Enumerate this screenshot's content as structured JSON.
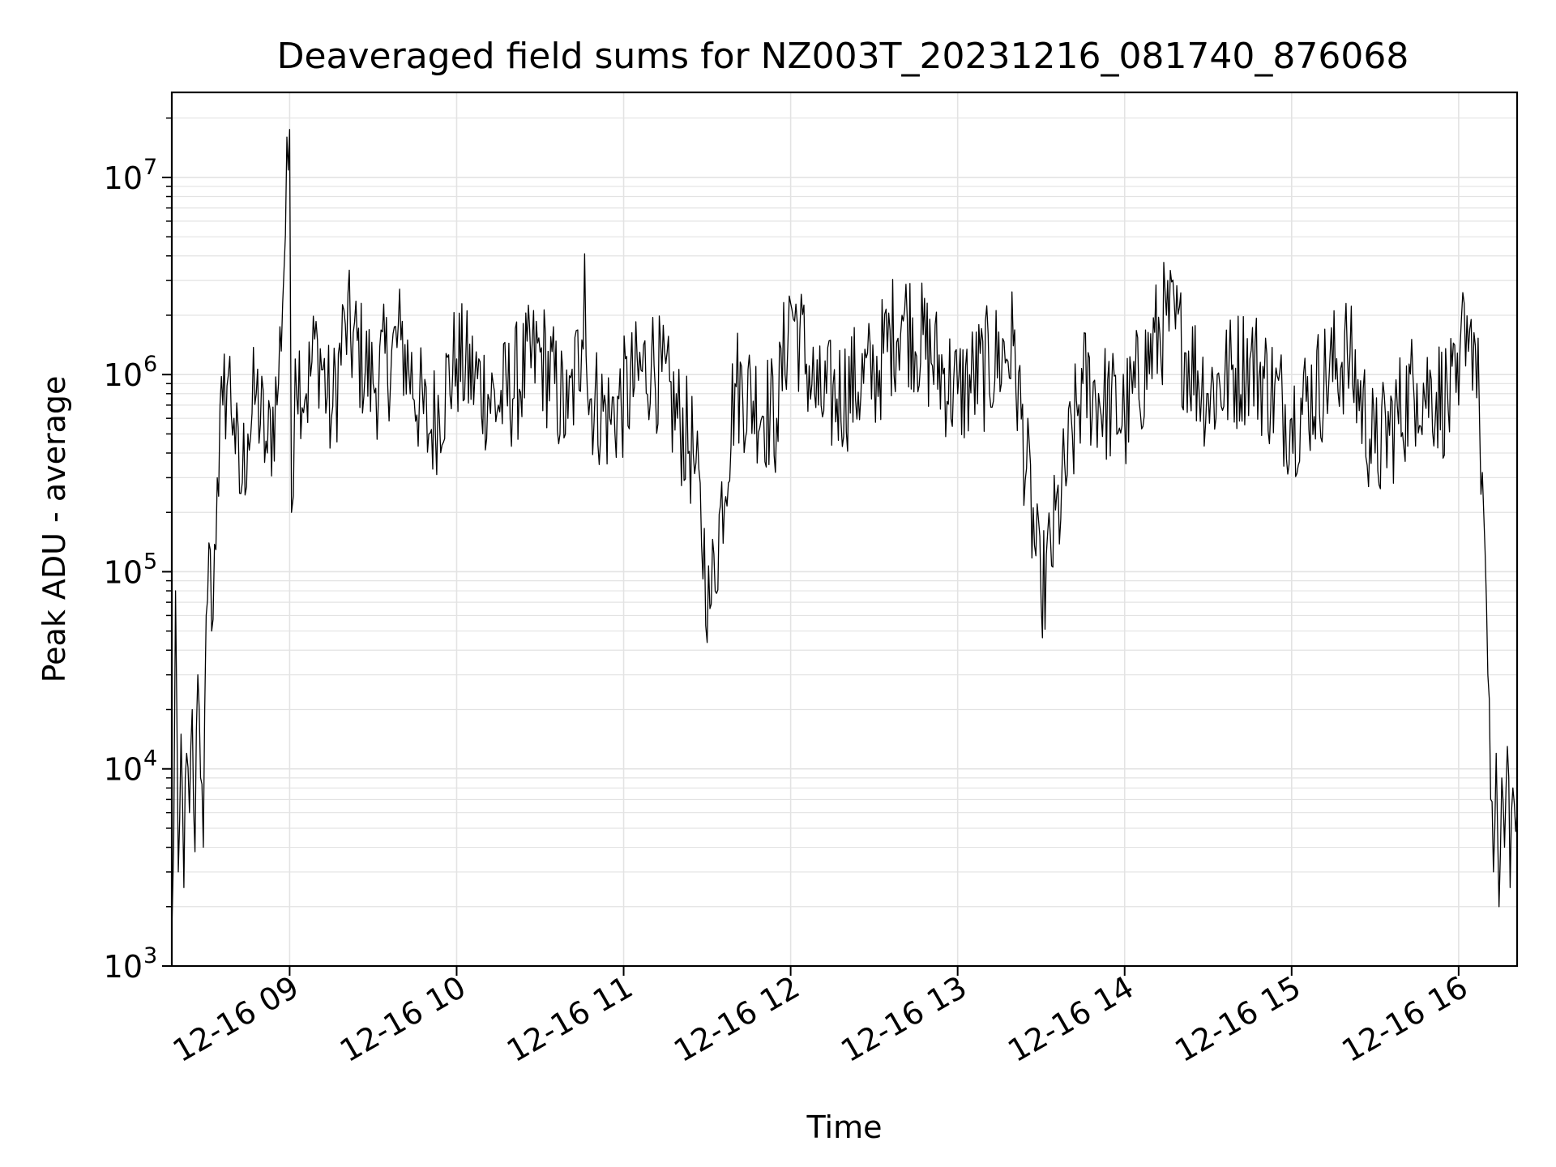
{
  "chart_data": {
    "type": "line",
    "title": "Deaveraged field sums for NZ003T_20231216_081740_876068",
    "xlabel": "Time",
    "ylabel": "Peak ADU - average",
    "yscale": "log",
    "ylim": [
      1000,
      27000000
    ],
    "xlim": [
      "2023-12-16 08:17:40",
      "2023-12-16 16:21:00"
    ],
    "grid": true,
    "line_color": "#000000",
    "x_ticks": [
      {
        "value": "2023-12-16 09:00",
        "label": "12-16 09"
      },
      {
        "value": "2023-12-16 10:00",
        "label": "12-16 10"
      },
      {
        "value": "2023-12-16 11:00",
        "label": "12-16 11"
      },
      {
        "value": "2023-12-16 12:00",
        "label": "12-16 12"
      },
      {
        "value": "2023-12-16 13:00",
        "label": "12-16 13"
      },
      {
        "value": "2023-12-16 14:00",
        "label": "12-16 14"
      },
      {
        "value": "2023-12-16 15:00",
        "label": "12-16 15"
      },
      {
        "value": "2023-12-16 16:00",
        "label": "12-16 16"
      }
    ],
    "y_ticks": [
      {
        "value": 1000,
        "base": "10",
        "exp": "3"
      },
      {
        "value": 10000,
        "base": "10",
        "exp": "4"
      },
      {
        "value": 100000,
        "base": "10",
        "exp": "5"
      },
      {
        "value": 1000000,
        "base": "10",
        "exp": "6"
      },
      {
        "value": 10000000,
        "base": "10",
        "exp": "7"
      }
    ],
    "series": [
      {
        "x": [
          "2023-12-16 08:17:40",
          "2023-12-16 08:18:20",
          "2023-12-16 08:19:00",
          "2023-12-16 08:20:00",
          "2023-12-16 08:21:00",
          "2023-12-16 08:22:00",
          "2023-12-16 08:23:00",
          "2023-12-16 08:24:00",
          "2023-12-16 08:25:00",
          "2023-12-16 08:26:00",
          "2023-12-16 08:27:00",
          "2023-12-16 08:28:00",
          "2023-12-16 08:29:00",
          "2023-12-16 08:30:00",
          "2023-12-16 08:31:00",
          "2023-12-16 08:32:00",
          "2023-12-16 08:34:00",
          "2023-12-16 08:36:00",
          "2023-12-16 08:38:00",
          "2023-12-16 08:40:00",
          "2023-12-16 08:42:00",
          "2023-12-16 08:45:00",
          "2023-12-16 08:48:00",
          "2023-12-16 08:52:00",
          "2023-12-16 08:56:00",
          "2023-12-16 09:00:00",
          "2023-12-16 09:00:40",
          "2023-12-16 09:02:00",
          "2023-12-16 09:06:00",
          "2023-12-16 09:10:00",
          "2023-12-16 09:15:00",
          "2023-12-16 09:20:00",
          "2023-12-16 09:30:00",
          "2023-12-16 09:40:00",
          "2023-12-16 09:50:00",
          "2023-12-16 10:00:00",
          "2023-12-16 10:15:00",
          "2023-12-16 10:30:00",
          "2023-12-16 10:40:00",
          "2023-12-16 10:45:00",
          "2023-12-16 10:46:00",
          "2023-12-16 10:47:00",
          "2023-12-16 10:55:00",
          "2023-12-16 11:10:00",
          "2023-12-16 11:25:00",
          "2023-12-16 11:31:00",
          "2023-12-16 11:40:00",
          "2023-12-16 11:55:00",
          "2023-12-16 12:00:00",
          "2023-12-16 12:10:00",
          "2023-12-16 12:30:00",
          "2023-12-16 12:40:00",
          "2023-12-16 13:00:00",
          "2023-12-16 13:20:00",
          "2023-12-16 13:30:00",
          "2023-12-16 13:45:00",
          "2023-12-16 14:00:00",
          "2023-12-16 14:15:00",
          "2023-12-16 14:30:00",
          "2023-12-16 14:45:00",
          "2023-12-16 15:00:00",
          "2023-12-16 15:20:00",
          "2023-12-16 15:30:00",
          "2023-12-16 15:45:00",
          "2023-12-16 16:00:00",
          "2023-12-16 16:02:00",
          "2023-12-16 16:04:00",
          "2023-12-16 16:06:00",
          "2023-12-16 16:07:30",
          "2023-12-16 16:09:00",
          "2023-12-16 16:10:30",
          "2023-12-16 16:11:30",
          "2023-12-16 16:12:30",
          "2023-12-16 16:13:30",
          "2023-12-16 16:14:30",
          "2023-12-16 16:15:30",
          "2023-12-16 16:16:30",
          "2023-12-16 16:17:30",
          "2023-12-16 16:18:30",
          "2023-12-16 16:19:30",
          "2023-12-16 16:21:00"
        ],
        "y": [
          1500,
          4000,
          80000,
          3000,
          15000,
          2500,
          12000,
          6000,
          20000,
          3800,
          30000,
          9000,
          4000,
          60000,
          140000,
          50000,
          300000,
          700000,
          1000000,
          600000,
          250000,
          500000,
          800000,
          400000,
          900000,
          17500000,
          200000,
          1200000,
          800000,
          1500000,
          600000,
          1800000,
          900000,
          1500000,
          500000,
          1200000,
          700000,
          1300000,
          600000,
          1500000,
          4100000,
          800000,
          600000,
          1200000,
          400000,
          65000,
          900000,
          600000,
          2300000,
          700000,
          1000000,
          2000000,
          800000,
          1400000,
          70000,
          900000,
          600000,
          2000000,
          800000,
          1200000,
          600000,
          1300000,
          400000,
          900000,
          700000,
          2300000,
          1700000,
          1400000,
          600000,
          200000,
          30000,
          7000,
          3000,
          12000,
          2000,
          9000,
          4000,
          13000,
          2500,
          8000,
          6000
        ]
      }
    ]
  }
}
